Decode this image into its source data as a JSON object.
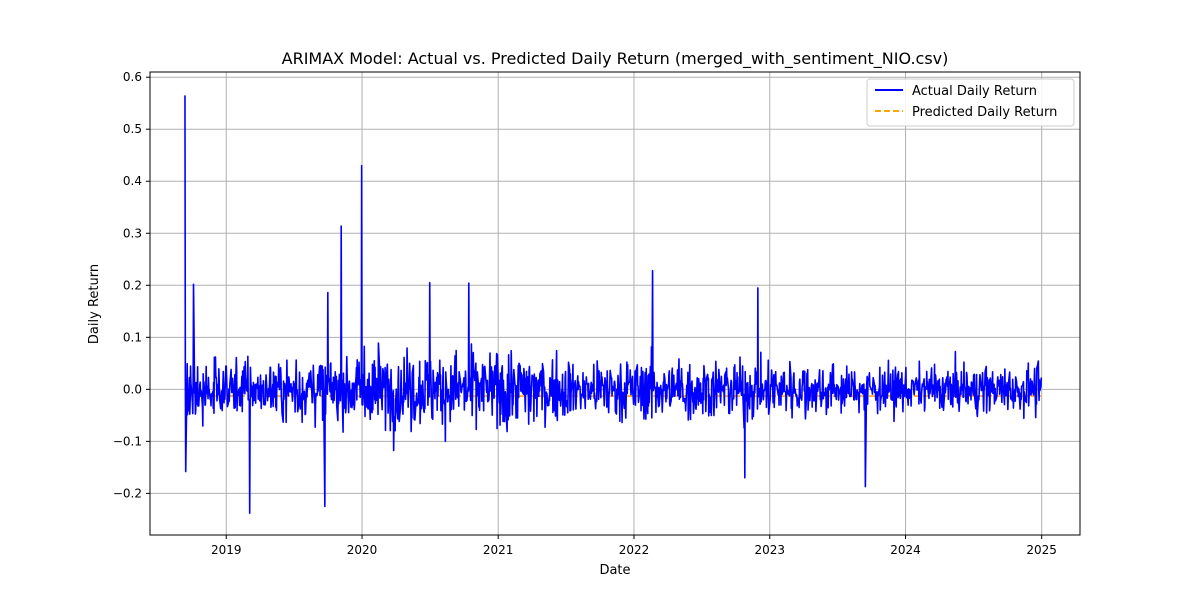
{
  "chart_data": {
    "type": "line",
    "title": "ARIMAX Model: Actual vs. Predicted Daily Return (merged_with_sentiment_NIO.csv)",
    "xlabel": "Date",
    "ylabel": "Daily Return",
    "xlim": [
      "2018-06-10",
      "2025-04-14"
    ],
    "ylim": [
      -0.28,
      0.61
    ],
    "x_ticks": [
      "2019",
      "2020",
      "2021",
      "2022",
      "2023",
      "2024",
      "2025"
    ],
    "y_ticks": [
      "−0.2",
      "−0.1",
      "0.0",
      "0.1",
      "0.2",
      "0.3",
      "0.4",
      "0.5",
      "0.6"
    ],
    "grid": true,
    "legend_position": "top-right",
    "x_range": [
      "2018-09-12",
      "2024-12-31"
    ],
    "series": [
      {
        "name": "Actual Daily Return",
        "color": "#0000ff",
        "style": "solid",
        "peaks": [
          {
            "x": "2018-09-12",
            "y": 0.565
          },
          {
            "x": "2018-09-14",
            "y": -0.158
          },
          {
            "x": "2018-10-05",
            "y": 0.202
          },
          {
            "x": "2019-03-05",
            "y": -0.238
          },
          {
            "x": "2019-09-23",
            "y": -0.225
          },
          {
            "x": "2019-10-01",
            "y": 0.186
          },
          {
            "x": "2019-11-06",
            "y": 0.314
          },
          {
            "x": "2019-12-31",
            "y": 0.43
          },
          {
            "x": "2020-07-01",
            "y": 0.205
          },
          {
            "x": "2020-10-14",
            "y": 0.204
          },
          {
            "x": "2022-02-20",
            "y": 0.228
          },
          {
            "x": "2022-10-26",
            "y": -0.17
          },
          {
            "x": "2022-11-30",
            "y": 0.195
          },
          {
            "x": "2023-09-15",
            "y": -0.187
          }
        ]
      },
      {
        "name": "Predicted Daily Return",
        "color": "#ffa500",
        "style": "dashed",
        "value": -0.013
      }
    ]
  }
}
